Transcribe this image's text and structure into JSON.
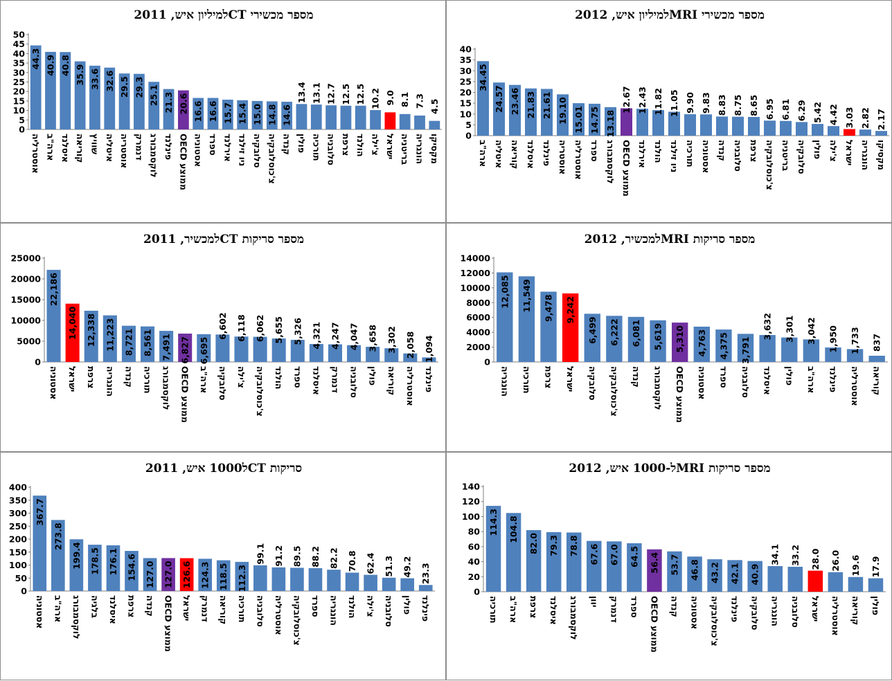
{
  "colors": {
    "default": "#4f81bd",
    "israel": "#ff0000",
    "oecd": "#7030a0"
  },
  "chart_data": [
    {
      "id": "mri-devices-2012",
      "type": "bar",
      "title": "מספר מכשירי  MRIלמיליון איש, 2012",
      "ylim": [
        0,
        40
      ],
      "ystep": 5,
      "categories": [
        "ארה\"ב",
        "איטליה",
        "קוריאה",
        "איסלנד",
        "פינלנד",
        "אוסטריה",
        "אוסטרליה",
        "ספרד",
        "לוקסמבורג",
        "ממוצע OECD",
        "אירלנד",
        "הולנד",
        "ניו זילנד",
        "תורכיה",
        "אסטוניה",
        "קנדה",
        "סלובניה",
        "צרפת",
        "צ'כוסלובקיה",
        "בריטניה",
        "סלובקיה",
        "פולין",
        "צ'ילה",
        "ישראל",
        "הונגריה",
        "מקסיקו"
      ],
      "values": [
        34.45,
        24.57,
        23.46,
        21.83,
        21.61,
        19.1,
        15.01,
        14.75,
        13.18,
        12.67,
        12.43,
        11.82,
        11.05,
        9.9,
        9.83,
        8.83,
        8.75,
        8.65,
        6.95,
        6.81,
        6.29,
        5.42,
        4.42,
        3.03,
        2.82,
        2.17
      ],
      "labels": [
        "34.45",
        "24.57",
        "23.46",
        "21.83",
        "21.61",
        "19.10",
        "15.01",
        "14.75",
        "13.18",
        "12.67",
        "12.43",
        "11.82",
        "11.05",
        "9.90",
        "9.83",
        "8.83",
        "8.75",
        "8.65",
        "6.95",
        "6.81",
        "6.29",
        "5.42",
        "4.42",
        "3.03",
        "2.82",
        "2.17"
      ],
      "highlight_israel": 23,
      "highlight_oecd": 9
    },
    {
      "id": "ct-devices-2011",
      "type": "bar",
      "title": "מספר מכשירי  CTלמיליון איש, 2011",
      "ylim": [
        0,
        50
      ],
      "ystep": 5,
      "categories": [
        "אוסטרליה",
        "ארה\"ב",
        "איסלנד",
        "קוריאה",
        "שוויץ",
        "איטליה",
        "אוסטריה",
        "דנמרק",
        "לוקסמבורג",
        "פינלנד",
        "ממוצע OECD",
        "אסטוניה",
        "ספרד",
        "אירלנד",
        "ניו זילנד",
        "סלובקיה",
        "צ'כוסלובקיה",
        "קנדה",
        "פולין",
        "תורכיה",
        "סלובניה",
        "צרפת",
        "הולנד",
        "צ'ילה",
        "ישראל",
        "בריטניה",
        "הונגריה",
        "מקסיקו"
      ],
      "values": [
        44.3,
        40.9,
        40.8,
        35.9,
        33.6,
        32.6,
        29.5,
        29.3,
        25.1,
        21.3,
        20.6,
        16.6,
        16.6,
        15.7,
        15.4,
        15.0,
        14.8,
        14.6,
        13.4,
        13.1,
        12.7,
        12.5,
        12.5,
        10.2,
        9.0,
        8.1,
        7.3,
        4.5
      ],
      "labels": [
        "44.3",
        "40.9",
        "40.8",
        "35.9",
        "33.6",
        "32.6",
        "29.5",
        "29.3",
        "25.1",
        "21.3",
        "20.6",
        "16.6",
        "16.6",
        "15.7",
        "15.4",
        "15.0",
        "14.8",
        "14.6",
        "13.4",
        "13.1",
        "12.7",
        "12.5",
        "12.5",
        "10.2",
        "9.0",
        "8.1",
        "7.3",
        "4.5"
      ],
      "highlight_israel": 24,
      "highlight_oecd": 10
    },
    {
      "id": "mri-scans-per-device-2012",
      "type": "bar",
      "title": "מספר סריקות  MRIלמכשיר, 2012",
      "ylim": [
        0,
        14000
      ],
      "ystep": 2000,
      "categories": [
        "הונגריה",
        "תורכיה",
        "צרפת",
        "ישראל",
        "סלובקיה",
        "צ'כוסלובקיה",
        "קנדה",
        "לוקסמבורג",
        "ממוצע OECD",
        "אסטוניה",
        "ספרד",
        "סלובניה",
        "איסלנד",
        "פולין",
        "ארה\"ב",
        "פינלנד",
        "אוסטרליה",
        "קוריאה"
      ],
      "values": [
        12085,
        11549,
        9478,
        9242,
        6499,
        6222,
        6081,
        5619,
        5310,
        4763,
        4375,
        3791,
        3632,
        3301,
        3042,
        1950,
        1733,
        837
      ],
      "labels": [
        "12,085",
        "11,549",
        "9,478",
        "9,242",
        "6,499",
        "6,222",
        "6,081",
        "5,619",
        "5,310",
        "4,763",
        "4,375",
        "3,791",
        "3,632",
        "3,301",
        "3,042",
        "1,950",
        "1,733",
        "837"
      ],
      "highlight_israel": 3,
      "highlight_oecd": 8
    },
    {
      "id": "ct-scans-per-device-2011",
      "type": "bar",
      "title": "מספר סריקות  CTלמכשיר, 2011",
      "ylim": [
        0,
        25000
      ],
      "ystep": 5000,
      "categories": [
        "אסטוניה",
        "ישראל",
        "צרפת",
        "הונגריה",
        "קנדה",
        "תורכיה",
        "לוקסמבורג",
        "ממוצע OECD",
        "ארה\"ב",
        "סלובקיה",
        "צ'ילה",
        "צ'כוסלובקיה",
        "הולנד",
        "ספרד",
        "איסלנד",
        "דנמרק",
        "סלובניה",
        "פולין",
        "קוריאה",
        "אוסטרליה",
        "פינלנד"
      ],
      "values": [
        22186,
        14040,
        12338,
        11223,
        8721,
        8561,
        7491,
        6827,
        6695,
        6602,
        6118,
        6062,
        5655,
        5326,
        4321,
        4247,
        4047,
        3658,
        3302,
        2058,
        1094
      ],
      "labels": [
        "22,186",
        "14,040",
        "12,338",
        "11,223",
        "8,721",
        "8,561",
        "7,491",
        "6,827",
        "6,695",
        "6,602",
        "6,118",
        "6,062",
        "5,655",
        "5,326",
        "4,321",
        "4,247",
        "4,047",
        "3,658",
        "3,302",
        "2,058",
        "1,094"
      ],
      "highlight_israel": 1,
      "highlight_oecd": 7
    },
    {
      "id": "mri-scans-per-1000-2012",
      "type": "bar",
      "title": "מספר סריקות  MRIל-1000 איש, 2012",
      "ylim": [
        0,
        140
      ],
      "ystep": 20,
      "categories": [
        "תורכיה",
        "ארה\"ב",
        "צרפת",
        "איסלנד",
        "לוקסמבורג",
        "יוון",
        "דנמרק",
        "ספרד",
        "ממוצע OECD",
        "קנדה",
        "אסטוניה",
        "צ'כוסלובקיה",
        "פינלנד",
        "סלובקיה",
        "הונגריה",
        "סלובניה",
        "ישראל",
        "אוסטרליה",
        "קוריאה",
        "פולין"
      ],
      "values": [
        114.3,
        104.8,
        82.0,
        79.3,
        78.8,
        67.6,
        67.0,
        64.5,
        56.4,
        53.7,
        46.8,
        43.2,
        42.1,
        40.9,
        34.1,
        33.2,
        28.0,
        26.0,
        19.6,
        17.9
      ],
      "labels": [
        "114.3",
        "104.8",
        "82.0",
        "79.3",
        "78.8",
        "67.6",
        "67.0",
        "64.5",
        "56.4",
        "53.7",
        "46.8",
        "43.2",
        "42.1",
        "40.9",
        "34.1",
        "33.2",
        "28.0",
        "26.0",
        "19.6",
        "17.9"
      ],
      "highlight_israel": 16,
      "highlight_oecd": 8
    },
    {
      "id": "ct-scans-per-1000-2011",
      "type": "bar",
      "title": "סריקות  CTל1000 איש, 2011",
      "ylim": [
        0,
        400
      ],
      "ystep": 50,
      "categories": [
        "אסטוניה",
        "ארה\"ב",
        "לוקסמבורג",
        "בלגיה",
        "איסלנד",
        "צרפת",
        "קנדה",
        "ממוצע OECD",
        "ישראל",
        "דנמרק",
        "קוריאה",
        "תורכיה",
        "סלובניה",
        "אוסטרליה",
        "צ'כוסלובקיה",
        "ספרד",
        "הונגריה",
        "הולנד",
        "צ'ילה",
        "סלובניה",
        "פולין",
        "פינלנד"
      ],
      "values": [
        367.7,
        273.8,
        199.4,
        178.5,
        176.1,
        154.6,
        127.0,
        127.0,
        126.6,
        124.3,
        118.5,
        112.3,
        99.1,
        91.2,
        89.5,
        88.2,
        82.2,
        70.8,
        62.4,
        51.3,
        49.2,
        23.3
      ],
      "labels": [
        "367.7",
        "273.8",
        "199.4",
        "178.5",
        "176.1",
        "154.6",
        "127.0",
        "127.0",
        "126.6",
        "124.3",
        "118.5",
        "112.3",
        "99.1",
        "91.2",
        "89.5",
        "88.2",
        "82.2",
        "70.8",
        "62.4",
        "51.3",
        "49.2",
        "23.3"
      ],
      "highlight_israel": 8,
      "highlight_oecd": 7
    }
  ]
}
